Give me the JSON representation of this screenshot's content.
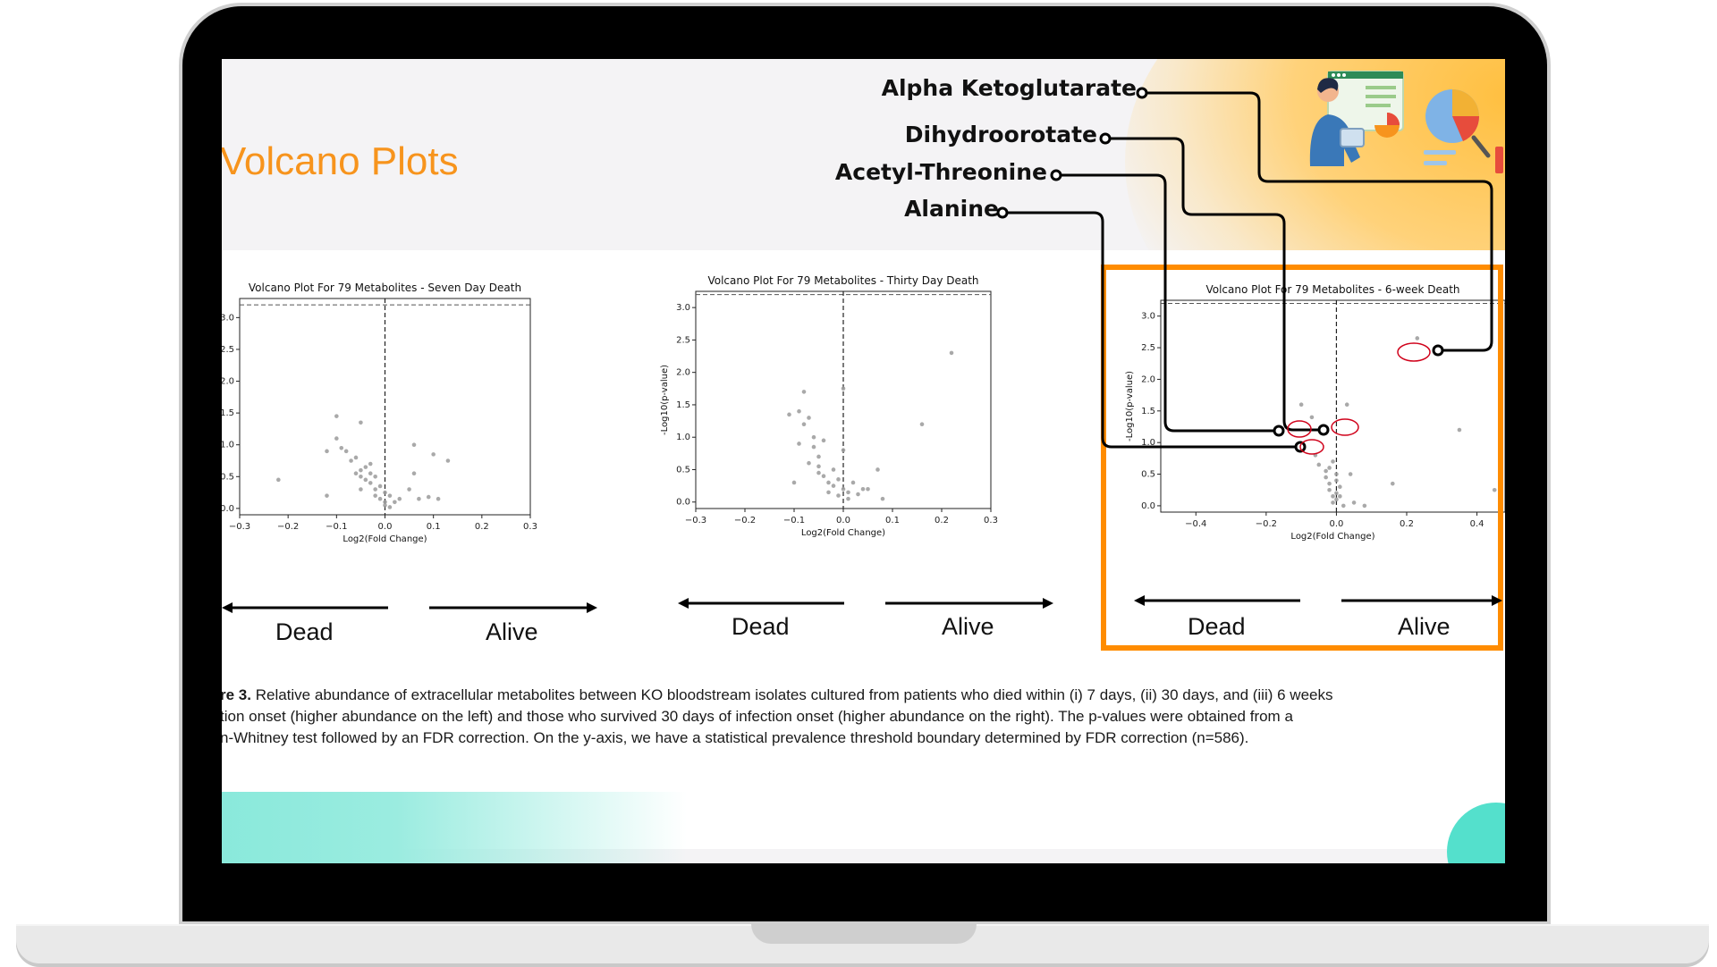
{
  "slide": {
    "title": "Volcano Plots",
    "caption_lead": "re 3.",
    "caption_lines": [
      "Relative abundance of extracellular metabolites between KO bloodstream isolates cultured from patients who died within (i) 7 days, (ii) 30 days, and (iii) 6 weeks",
      "tion onset (higher abundance on the left) and those who survived 30 days of infection onset (higher abundance on the right). The p-values were obtained from a",
      "n-Whitney test followed by an FDR correction. On the y-axis, we have a statistical prevalence threshold boundary determined by FDR correction (n=586)."
    ],
    "callouts": [
      "Alpha Ketoglutarate",
      "Dihydroorotate",
      "Acetyl-Threonine",
      "Alanine"
    ],
    "direction_labels": {
      "left": "Dead",
      "right": "Alive"
    },
    "colors": {
      "title": "#f7941d",
      "highlight": "#ff8c00",
      "marker": "#d0021b",
      "accent_teal": "#54e0cc"
    }
  },
  "chart_data": [
    {
      "type": "scatter",
      "title": "Volcano Plot For 79 Metabolites - Seven Day Death",
      "xlabel": "Log2(Fold Change)",
      "ylabel": "",
      "xlim": [
        -0.3,
        0.3
      ],
      "ylim": [
        -0.1,
        3.3
      ],
      "xticks": [
        -0.3,
        -0.2,
        -0.1,
        0.0,
        0.1,
        0.2,
        0.3
      ],
      "xtick_labels": [
        "−0.3",
        "−0.2",
        "−0.1",
        "0.0",
        "0.1",
        "0.2",
        "0.3"
      ],
      "yticks": [
        0.0,
        0.5,
        1.0,
        1.5,
        2.0,
        2.5,
        3.0
      ],
      "ytick_labels": [
        "0.0",
        "0.5",
        "1.0",
        "1.5",
        "2.0",
        "2.5",
        "3.0"
      ],
      "threshold_y": 3.2,
      "center_x": 0.0,
      "x": [
        -0.22,
        -0.12,
        -0.1,
        -0.1,
        -0.08,
        -0.07,
        -0.06,
        -0.06,
        -0.05,
        -0.05,
        -0.05,
        -0.04,
        -0.04,
        -0.03,
        -0.03,
        -0.02,
        -0.02,
        -0.02,
        -0.01,
        -0.01,
        0.0,
        0.0,
        0.01,
        0.01,
        0.02,
        0.03,
        0.05,
        0.06,
        0.06,
        0.07,
        0.09,
        0.1,
        0.11,
        0.13,
        -0.09,
        -0.12,
        -0.05,
        -0.03,
        0.0
      ],
      "y": [
        0.45,
        0.2,
        1.45,
        1.1,
        0.9,
        0.75,
        0.55,
        0.8,
        1.35,
        0.6,
        0.3,
        0.45,
        0.65,
        0.4,
        0.55,
        0.3,
        0.2,
        0.5,
        0.35,
        0.15,
        0.05,
        0.1,
        0.2,
        0.02,
        0.1,
        0.15,
        0.3,
        1.0,
        0.55,
        0.15,
        0.18,
        0.85,
        0.15,
        0.75,
        0.95,
        0.9,
        0.5,
        0.7,
        0.25
      ],
      "point_color": "#9a9a9a"
    },
    {
      "type": "scatter",
      "title": "Volcano Plot For 79 Metabolites - Thirty Day Death",
      "xlabel": "Log2(Fold Change)",
      "ylabel": "-Log10(p-value)",
      "xlim": [
        -0.3,
        0.3
      ],
      "ylim": [
        -0.1,
        3.25
      ],
      "xticks": [
        -0.3,
        -0.2,
        -0.1,
        0.0,
        0.1,
        0.2,
        0.3
      ],
      "xtick_labels": [
        "−0.3",
        "−0.2",
        "−0.1",
        "0.0",
        "0.1",
        "0.2",
        "0.3"
      ],
      "yticks": [
        0.0,
        0.5,
        1.0,
        1.5,
        2.0,
        2.5,
        3.0
      ],
      "ytick_labels": [
        "0.0",
        "0.5",
        "1.0",
        "1.5",
        "2.0",
        "2.5",
        "3.0"
      ],
      "threshold_y": 3.2,
      "center_x": 0.0,
      "x": [
        -0.1,
        -0.09,
        -0.09,
        -0.08,
        -0.08,
        -0.07,
        -0.07,
        -0.06,
        -0.06,
        -0.05,
        -0.05,
        -0.04,
        -0.04,
        -0.03,
        -0.03,
        -0.02,
        -0.02,
        -0.01,
        -0.01,
        0.0,
        0.0,
        0.01,
        0.01,
        0.02,
        0.03,
        0.04,
        0.05,
        0.07,
        0.08,
        0.16,
        0.22,
        -0.11,
        0.0,
        -0.05
      ],
      "y": [
        0.3,
        1.4,
        0.9,
        1.7,
        1.2,
        1.3,
        0.6,
        0.85,
        1.0,
        0.45,
        0.7,
        0.4,
        0.95,
        0.3,
        0.15,
        0.5,
        0.25,
        0.1,
        0.35,
        0.2,
        1.75,
        0.05,
        0.15,
        0.3,
        0.12,
        0.2,
        0.2,
        0.5,
        0.05,
        1.2,
        2.3,
        1.35,
        0.8,
        0.55
      ],
      "point_color": "#9a9a9a"
    },
    {
      "type": "scatter",
      "title": "Volcano Plot For 79 Metabolites - 6-week Death",
      "xlabel": "Log2(Fold Change)",
      "ylabel": "-Log10(p-value)",
      "xlim": [
        -0.5,
        0.48
      ],
      "ylim": [
        -0.1,
        3.25
      ],
      "xticks": [
        -0.4,
        -0.2,
        0.0,
        0.2,
        0.4
      ],
      "xtick_labels": [
        "−0.4",
        "−0.2",
        "0.0",
        "0.2",
        "0.4"
      ],
      "yticks": [
        0.0,
        0.5,
        1.0,
        1.5,
        2.0,
        2.5,
        3.0
      ],
      "ytick_labels": [
        "0.0",
        "0.5",
        "1.0",
        "1.5",
        "2.0",
        "2.5",
        "3.0"
      ],
      "threshold_y": 3.2,
      "center_x": 0.0,
      "x": [
        0.23,
        -0.1,
        -0.07,
        0.03,
        -0.04,
        -0.06,
        -0.05,
        -0.03,
        -0.03,
        -0.02,
        -0.02,
        -0.01,
        -0.01,
        0.0,
        0.0,
        0.0,
        0.01,
        0.01,
        0.02,
        0.04,
        0.05,
        0.08,
        0.16,
        0.35,
        0.45,
        -0.02,
        0.0,
        -0.01
      ],
      "y": [
        2.65,
        1.6,
        1.4,
        1.6,
        1.2,
        0.8,
        0.65,
        0.55,
        0.45,
        0.35,
        0.25,
        0.15,
        0.05,
        0.4,
        0.2,
        0.1,
        0.3,
        0.15,
        0.0,
        0.5,
        0.05,
        0.0,
        0.35,
        1.2,
        0.25,
        0.6,
        0.5,
        0.7
      ],
      "point_color": "#9a9a9a",
      "labeled_points": [
        {
          "name": "Alpha Ketoglutarate",
          "x": 0.23,
          "y": 2.65
        },
        {
          "name": "Dihydroorotate",
          "x": 0.03,
          "y": 1.6
        },
        {
          "name": "Acetyl-Threonine",
          "x": -0.1,
          "y": 1.6
        },
        {
          "name": "Alanine",
          "x": -0.07,
          "y": 1.4
        }
      ]
    }
  ]
}
